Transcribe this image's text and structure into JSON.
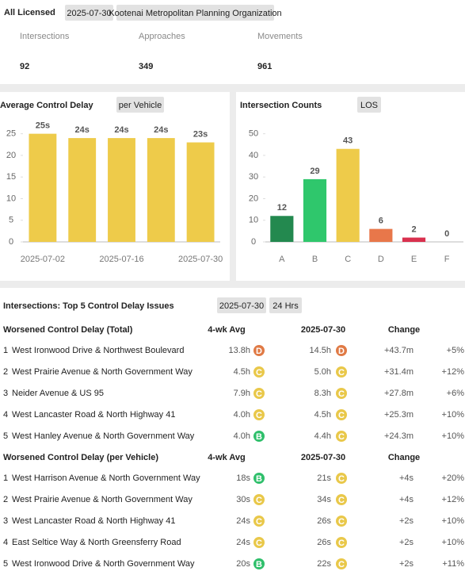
{
  "header": {
    "title": "All Licensed",
    "date": "2025-07-30",
    "organization": "Kootenai Metropolitan Planning Organization"
  },
  "kpis": [
    {
      "label": "Intersections",
      "value": 92
    },
    {
      "label": "Approaches",
      "value": 349
    },
    {
      "label": "Movements",
      "value": 961
    }
  ],
  "delay_chart": {
    "type": "bar",
    "title": "Average Control Delay",
    "button": "per Vehicle",
    "categories": [
      "2025-07-02",
      null,
      "2025-07-16",
      null,
      "2025-07-30"
    ],
    "values": [
      25,
      24,
      24,
      24,
      23
    ],
    "value_labels": [
      "25s",
      "24s",
      "24s",
      "24s",
      "23s"
    ],
    "color": "#eecb4a",
    "ylim": [
      0,
      27.5
    ],
    "yticks": [
      0,
      5,
      10,
      15,
      20,
      25
    ]
  },
  "los_chart": {
    "type": "bar",
    "title": "Intersection Counts",
    "button": "LOS",
    "categories": [
      "A",
      "B",
      "C",
      "D",
      "E",
      "F"
    ],
    "values": [
      12,
      29,
      43,
      6,
      2,
      0
    ],
    "colors": [
      "#23894f",
      "#2fc76c",
      "#eecb4a",
      "#e8774a",
      "#d9304e",
      "#999999"
    ],
    "ylim": [
      0,
      55
    ],
    "yticks": [
      0,
      10,
      20,
      30,
      40,
      50
    ]
  },
  "grade_colors": {
    "B": "#2fbf6b",
    "C": "#e9c84a",
    "D": "#e07a45"
  },
  "table": {
    "title": "Intersections: Top 5 Control Delay Issues",
    "date": "2025-07-30",
    "period": "24 Hrs",
    "sections": [
      {
        "columns": [
          "Worsened Control Delay (Total)",
          "4-wk Avg",
          "2025-07-30",
          "Change"
        ],
        "rows": [
          [
            "1",
            "West Ironwood Drive & Northwest Boulevard",
            "13.8h",
            "D",
            "14.5h",
            "D",
            "+43.7m",
            "+5%"
          ],
          [
            "2",
            "West Prairie Avenue & North Government Way",
            "4.5h",
            "C",
            "5.0h",
            "C",
            "+31.4m",
            "+12%"
          ],
          [
            "3",
            "Neider Avenue & US 95",
            "7.9h",
            "C",
            "8.3h",
            "C",
            "+27.8m",
            "+6%"
          ],
          [
            "4",
            "West Lancaster Road & North Highway 41",
            "4.0h",
            "C",
            "4.5h",
            "C",
            "+25.3m",
            "+10%"
          ],
          [
            "5",
            "West Hanley Avenue & North Government Way",
            "4.0h",
            "B",
            "4.4h",
            "C",
            "+24.3m",
            "+10%"
          ]
        ]
      },
      {
        "columns": [
          "Worsened Control Delay (per Vehicle)",
          "4-wk Avg",
          "2025-07-30",
          "Change"
        ],
        "rows": [
          [
            "1",
            "West Harrison Avenue & North Government Way",
            "18s",
            "B",
            "21s",
            "C",
            "+4s",
            "+20%"
          ],
          [
            "2",
            "West Prairie Avenue & North Government Way",
            "30s",
            "C",
            "34s",
            "C",
            "+4s",
            "+12%"
          ],
          [
            "3",
            "West Lancaster Road & North Highway 41",
            "24s",
            "C",
            "26s",
            "C",
            "+2s",
            "+10%"
          ],
          [
            "4",
            "East Seltice Way & North Greensferry Road",
            "24s",
            "C",
            "26s",
            "C",
            "+2s",
            "+10%"
          ],
          [
            "5",
            "West Ironwood Drive & North Government Way",
            "20s",
            "B",
            "22s",
            "C",
            "+2s",
            "+11%"
          ]
        ]
      }
    ]
  }
}
